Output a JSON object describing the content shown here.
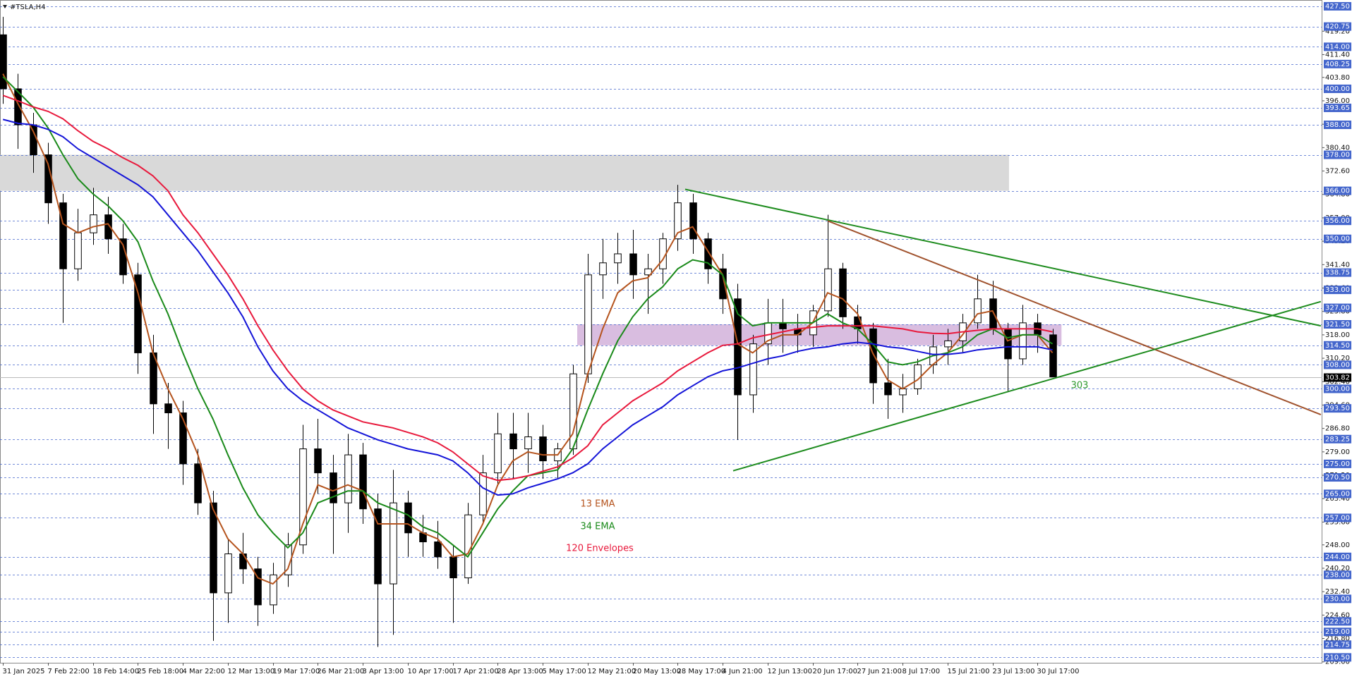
{
  "chart_data": {
    "type": "candlestick",
    "title": "#TSLA,H4",
    "categories": [
      "31 Jan 2025",
      null,
      null,
      "7 Feb 22:00",
      null,
      null,
      "18 Feb 14:00",
      null,
      null,
      "25 Feb 18:00",
      null,
      null,
      "4 Mar 22:00",
      null,
      null,
      "12 Mar 13:00",
      null,
      null,
      "19 Mar 17:00",
      null,
      null,
      "26 Mar 21:00",
      null,
      null,
      "3 Apr 13:00",
      null,
      null,
      "10 Apr 17:00",
      null,
      null,
      "17 Apr 21:00",
      null,
      null,
      "28 Apr 13:00",
      null,
      null,
      "5 May 17:00",
      null,
      null,
      "12 May 21:00",
      null,
      null,
      "20 May 13:00",
      null,
      null,
      "28 May 17:00",
      null,
      null,
      "4 Jun 21:00",
      null,
      null,
      "12 Jun 13:00",
      null,
      null,
      "20 Jun 17:00",
      null,
      null,
      "27 Jun 21:00",
      null,
      null,
      "8 Jul 17:00",
      null,
      null,
      "15 Jul 21:00",
      null,
      null,
      "23 Jul 13:00",
      null,
      null,
      "30 Jul 17:00",
      null
    ],
    "open": [
      418,
      400,
      388,
      378,
      362,
      340,
      352,
      358,
      350,
      338,
      312,
      295,
      292,
      275,
      262,
      232,
      245,
      240,
      228,
      238,
      248,
      280,
      272,
      262,
      278,
      260,
      235,
      262,
      252,
      249,
      244,
      237,
      258,
      272,
      285,
      280,
      284,
      276,
      280,
      305,
      338,
      342,
      345,
      338,
      340,
      350,
      362,
      350,
      340,
      330,
      298,
      315,
      322,
      320,
      318,
      326,
      340,
      324,
      320,
      302,
      298,
      300,
      308,
      314,
      316,
      322,
      330,
      320,
      310,
      322,
      318
    ],
    "high": [
      424,
      405,
      392,
      382,
      365,
      360,
      367,
      364,
      355,
      342,
      318,
      302,
      296,
      280,
      266,
      250,
      252,
      244,
      242,
      252,
      288,
      290,
      278,
      285,
      282,
      265,
      273,
      266,
      258,
      256,
      248,
      262,
      278,
      292,
      292,
      292,
      288,
      282,
      308,
      345,
      350,
      352,
      353,
      345,
      352,
      368,
      365,
      352,
      345,
      335,
      318,
      330,
      330,
      325,
      328,
      358,
      342,
      328,
      322,
      310,
      305,
      310,
      318,
      320,
      325,
      338,
      336,
      322,
      328,
      325,
      320
    ],
    "low": [
      395,
      380,
      372,
      355,
      322,
      336,
      348,
      345,
      335,
      305,
      285,
      280,
      268,
      258,
      216,
      222,
      235,
      221,
      225,
      234,
      245,
      265,
      245,
      252,
      255,
      214,
      218,
      244,
      244,
      240,
      222,
      235,
      255,
      268,
      270,
      272,
      270,
      270,
      278,
      302,
      330,
      335,
      330,
      325,
      335,
      346,
      345,
      335,
      325,
      283,
      292,
      308,
      312,
      312,
      314,
      324,
      320,
      315,
      295,
      290,
      292,
      298,
      305,
      308,
      312,
      320,
      318,
      299,
      308,
      312,
      305
    ],
    "close": [
      400,
      388,
      378,
      362,
      340,
      352,
      358,
      350,
      338,
      312,
      295,
      292,
      275,
      262,
      232,
      245,
      240,
      228,
      238,
      248,
      280,
      272,
      262,
      278,
      260,
      235,
      262,
      252,
      249,
      244,
      237,
      258,
      272,
      285,
      280,
      284,
      276,
      280,
      305,
      338,
      342,
      345,
      338,
      340,
      350,
      362,
      350,
      340,
      330,
      298,
      315,
      322,
      320,
      318,
      326,
      340,
      324,
      320,
      302,
      298,
      300,
      308,
      314,
      316,
      322,
      330,
      320,
      310,
      322,
      318,
      304
    ],
    "series": [
      {
        "name": "13 EMA",
        "color": "#b5541e",
        "values": [
          405,
          395,
          386,
          375,
          355,
          352,
          354,
          355,
          348,
          332,
          312,
          300,
          290,
          278,
          260,
          250,
          245,
          237,
          235,
          240,
          255,
          268,
          266,
          268,
          266,
          255,
          255,
          255,
          252,
          250,
          244,
          245,
          255,
          268,
          276,
          279,
          278,
          278,
          285,
          305,
          320,
          332,
          336,
          337,
          343,
          352,
          354,
          346,
          338,
          315,
          312,
          316,
          318,
          318,
          322,
          332,
          330,
          325,
          312,
          303,
          300,
          303,
          308,
          312,
          318,
          325,
          326,
          316,
          318,
          318,
          312
        ]
      },
      {
        "name": "34 EMA",
        "color": "#1a8a1a",
        "values": [
          404,
          399,
          394,
          387,
          378,
          370,
          365,
          361,
          356,
          349,
          336,
          325,
          312,
          300,
          290,
          278,
          267,
          258,
          252,
          247,
          252,
          262,
          264,
          266,
          266,
          262,
          260,
          258,
          254,
          252,
          248,
          244,
          252,
          260,
          266,
          271,
          272,
          273,
          280,
          293,
          305,
          316,
          324,
          330,
          334,
          340,
          343,
          342,
          338,
          325,
          321,
          322,
          322,
          322,
          322,
          325,
          322,
          320,
          315,
          309,
          308,
          309,
          311,
          312,
          314,
          318,
          320,
          317,
          318,
          318,
          315
        ]
      },
      {
        "name": "120 Envelopes",
        "color": "#e8193c",
        "lower_color": "#1414d8",
        "values": [
          397.8,
          396,
          394,
          392.5,
          390,
          386,
          382.5,
          380,
          377,
          374.5,
          371,
          366,
          358,
          352,
          345,
          338,
          330,
          321,
          313,
          306,
          300,
          296,
          293,
          291,
          289,
          288,
          287,
          285.5,
          284,
          282,
          279,
          275,
          271,
          269.5,
          270,
          271,
          272.5,
          274,
          277,
          281,
          288,
          292,
          296,
          299,
          302,
          306,
          309,
          312,
          314.5,
          315,
          317,
          318,
          319,
          320,
          320.5,
          321,
          321,
          321,
          321,
          320.5,
          320,
          319,
          318.5,
          318.4,
          319,
          319.5,
          320,
          320,
          320,
          320,
          319
        ],
        "lower": [
          389.8,
          388.5,
          388,
          386.5,
          384,
          380,
          377,
          374,
          371,
          368,
          364,
          358,
          352,
          346,
          339,
          332,
          324,
          314,
          306,
          300,
          296,
          293,
          290,
          287,
          285,
          283,
          281.5,
          280,
          279,
          278,
          276,
          272,
          267,
          264.6,
          265,
          267,
          268.5,
          270,
          272,
          275,
          280,
          284,
          288,
          291,
          294,
          298,
          301,
          304,
          306,
          307,
          308.5,
          310,
          311,
          312.5,
          313.5,
          314,
          315,
          315.5,
          315,
          314,
          313.5,
          312.5,
          311.5,
          311.5,
          312,
          313,
          313.5,
          314,
          314,
          314,
          313
        ]
      }
    ],
    "trendlines": [
      {
        "color": "#1e8c1e",
        "start": [
          45.5,
          366.5
        ],
        "end": [
          87.9,
          321
        ]
      },
      {
        "color": "#a0522d",
        "start": [
          55,
          356
        ],
        "end": [
          87.9,
          291.4
        ]
      },
      {
        "color": "#1e8c1e",
        "start": [
          48.7,
          272.7
        ],
        "end": [
          87.9,
          329.1
        ]
      }
    ],
    "zones": [
      {
        "color": "#d9d9d9",
        "start": -0.2,
        "end": 67.1,
        "low": 366,
        "high": 378
      },
      {
        "color": "#d9bde0",
        "start": 38.3,
        "end": 70.6,
        "low": 314.5,
        "high": 321.5
      }
    ],
    "annotation": "303",
    "annotation_color": "#2e9a2e",
    "last_price": 303.82,
    "xlim": [
      -0.2,
      88
    ],
    "ylim": [
      208.7,
      429.6
    ],
    "yticks": [
      {
        "value": 209,
        "label": "209.00"
      },
      {
        "value": 216.8,
        "label": "216.80"
      },
      {
        "value": 224.6,
        "label": "224.60"
      },
      {
        "value": 232.4,
        "label": "232.40"
      },
      {
        "value": 240.2,
        "label": "240.20"
      },
      {
        "value": 248,
        "label": "248.00"
      },
      {
        "value": 255.6,
        "label": "255.60"
      },
      {
        "value": 263.4,
        "label": "263.40"
      },
      {
        "value": 271.2,
        "label": "271.20"
      },
      {
        "value": 279,
        "label": "279.00"
      },
      {
        "value": 286.8,
        "label": "286.80"
      },
      {
        "value": 294.6,
        "label": "294.60"
      },
      {
        "value": 302.4,
        "label": "302.40"
      },
      {
        "value": 310.2,
        "label": "310.20"
      },
      {
        "value": 318,
        "label": "318.00"
      },
      {
        "value": 325.8,
        "label": "325.80"
      },
      {
        "value": 333.6,
        "label": "333.60"
      },
      {
        "value": 341.4,
        "label": "341.40"
      },
      {
        "value": 349.2,
        "label": "349.20"
      },
      {
        "value": 357,
        "label": "357.00"
      },
      {
        "value": 364.8,
        "label": "364.80"
      },
      {
        "value": 372.6,
        "label": "372.60"
      },
      {
        "value": 380.4,
        "label": "380.40"
      },
      {
        "value": 388.2,
        "label": "388.20"
      },
      {
        "value": 396,
        "label": "396.00"
      },
      {
        "value": 403.8,
        "label": "403.80"
      },
      {
        "value": 411.4,
        "label": "411.40"
      },
      {
        "value": 419.2,
        "label": "419.20"
      }
    ],
    "levels": [
      {
        "value": 427.5,
        "label": "427.50"
      },
      {
        "value": 420.75,
        "label": "420.75"
      },
      {
        "value": 414,
        "label": "414.00"
      },
      {
        "value": 408.25,
        "label": "408.25"
      },
      {
        "value": 400,
        "label": "400.00"
      },
      {
        "value": 393.65,
        "label": "393.65"
      },
      {
        "value": 388,
        "label": "388.00"
      },
      {
        "value": 378,
        "label": "378.00"
      },
      {
        "value": 366,
        "label": "366.00"
      },
      {
        "value": 356,
        "label": "356.00"
      },
      {
        "value": 350,
        "label": "350.00"
      },
      {
        "value": 338.75,
        "label": "338.75"
      },
      {
        "value": 333,
        "label": "333.00"
      },
      {
        "value": 327,
        "label": "327.00"
      },
      {
        "value": 321.5,
        "label": "321.50"
      },
      {
        "value": 314.5,
        "label": "314.50"
      },
      {
        "value": 308,
        "label": "308.00"
      },
      {
        "value": 300,
        "label": "300.00"
      },
      {
        "value": 293.5,
        "label": "293.50"
      },
      {
        "value": 283.25,
        "label": "283.25"
      },
      {
        "value": 275,
        "label": "275.00"
      },
      {
        "value": 270.5,
        "label": "270.50"
      },
      {
        "value": 265,
        "label": "265.00"
      },
      {
        "value": 257,
        "label": "257.00"
      },
      {
        "value": 244,
        "label": "244.00"
      },
      {
        "value": 238,
        "label": "238.00"
      },
      {
        "value": 230,
        "label": "230.00"
      },
      {
        "value": 222.5,
        "label": "222.50"
      },
      {
        "value": 219,
        "label": "219.00"
      },
      {
        "value": 214.75,
        "label": "214.75"
      },
      {
        "value": 210.5,
        "label": "210.50"
      }
    ],
    "level_color": "#4466cc",
    "up_color": "#ffffff",
    "down_color": "#000000"
  }
}
